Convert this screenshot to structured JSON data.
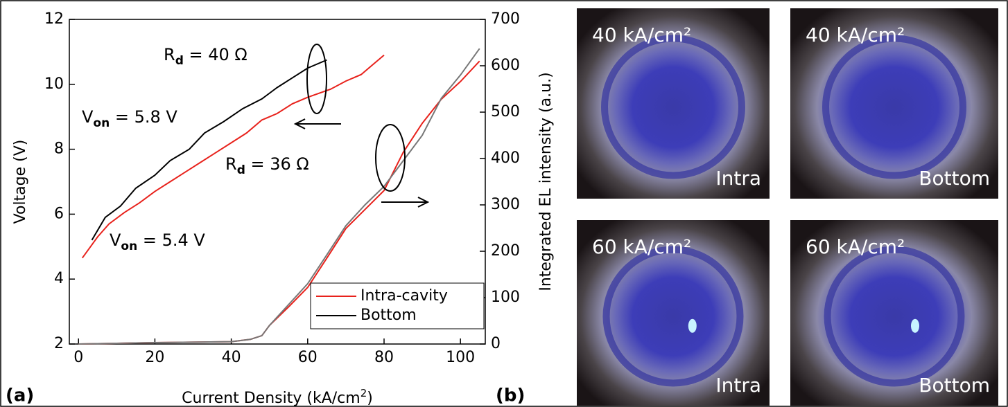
{
  "chart_data": {
    "type": "line",
    "xlabel": {
      "text": "Current Density (kA/cm",
      "sup": "2",
      "tail": ")"
    },
    "ylabel": "Voltage (V)",
    "y2label": "Integrated EL intensity (a.u.)",
    "xlim": [
      -2.4,
      106.5
    ],
    "ylim": [
      2,
      12
    ],
    "y2lim": [
      0,
      700
    ],
    "xticks": [
      0,
      20,
      40,
      60,
      80,
      100
    ],
    "yticks": [
      2,
      4,
      6,
      8,
      10,
      12
    ],
    "y2ticks": [
      0,
      100,
      200,
      300,
      400,
      500,
      600,
      700
    ],
    "legend": "lower right",
    "series": [
      {
        "name": "Intra-cavity",
        "color": "#e8221c",
        "x": [
          1,
          5,
          8,
          12,
          16,
          20,
          24,
          28,
          32,
          36,
          40,
          44,
          48,
          52,
          56,
          60,
          66,
          70,
          74,
          77,
          80
        ],
        "values": [
          4.65,
          5.3,
          5.7,
          6.05,
          6.35,
          6.7,
          7.0,
          7.3,
          7.6,
          7.9,
          8.2,
          8.5,
          8.9,
          9.1,
          9.4,
          9.6,
          9.85,
          10.1,
          10.3,
          10.6,
          10.9
        ]
      },
      {
        "name": "Bottom",
        "color": "#000000",
        "x": [
          3.5,
          7,
          11,
          15,
          20,
          24,
          29,
          33,
          38,
          43,
          48,
          52,
          56,
          60,
          65
        ],
        "values": [
          5.2,
          5.9,
          6.25,
          6.8,
          7.2,
          7.65,
          8.0,
          8.5,
          8.85,
          9.25,
          9.55,
          9.9,
          10.2,
          10.5,
          10.75
        ]
      },
      {
        "color": "#e8221c",
        "axis": "y2",
        "x": [
          0,
          20,
          40,
          45,
          48,
          50,
          55,
          60,
          65,
          70,
          75,
          80,
          85,
          90,
          95,
          100,
          105
        ],
        "values": [
          0,
          3,
          5,
          10,
          18,
          40,
          80,
          122,
          185,
          249,
          290,
          331,
          413,
          476,
          528,
          566,
          610
        ]
      },
      {
        "color": "#777777",
        "axis": "y2",
        "x": [
          0,
          20,
          40,
          45,
          48,
          50,
          55,
          60,
          65,
          70,
          75,
          80,
          85,
          90,
          95,
          100,
          105
        ],
        "values": [
          0,
          3,
          5,
          10,
          18,
          40,
          85,
          130,
          192,
          255,
          300,
          340,
          395,
          450,
          530,
          580,
          637
        ]
      }
    ],
    "annotations": [
      {
        "main": "R",
        "sub": "d",
        "tail": " = 40 Ω"
      },
      {
        "main": "V",
        "sub": "on",
        "tail": " = 5.8 V"
      },
      {
        "main": "R",
        "sub": "d",
        "tail": " = 36 Ω"
      },
      {
        "main": "V",
        "sub": "on",
        "tail": " = 5.4 V"
      }
    ],
    "panel_a": "(a)",
    "panel_b": "(b)",
    "images": [
      {
        "density": "40 kA/cm²",
        "position": "Intra"
      },
      {
        "density": "40 kA/cm²",
        "position": "Bottom"
      },
      {
        "density": "60 kA/cm²",
        "position": "Intra"
      },
      {
        "density": "60 kA/cm²",
        "position": "Bottom"
      }
    ]
  }
}
